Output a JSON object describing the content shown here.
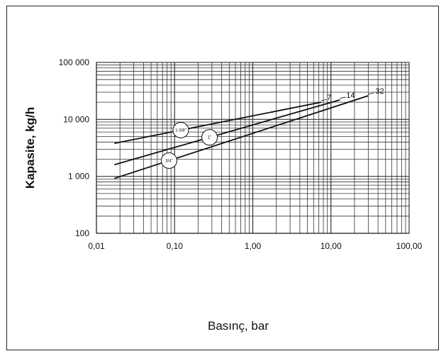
{
  "chart_data": {
    "type": "line",
    "title": "",
    "xlabel": "Basınç, bar",
    "ylabel": "Kapasite, kg/h",
    "xscale": "log",
    "yscale": "log",
    "xlim": [
      0.01,
      100
    ],
    "ylim": [
      100,
      100000
    ],
    "grid": true,
    "x_tick_labels": [
      "0,01",
      "0,10",
      "1,00",
      "10,00",
      "100,00"
    ],
    "y_tick_labels": [
      "100",
      "1 000",
      "10 000",
      "100 000"
    ],
    "series": [
      {
        "name": "7",
        "pipe": "1-3/8\"",
        "x": [
          0.017,
          7.5
        ],
        "y": [
          3800,
          20000
        ]
      },
      {
        "name": "14",
        "pipe": "1\"",
        "x": [
          0.017,
          13
        ],
        "y": [
          1600,
          22000
        ]
      },
      {
        "name": "32",
        "pipe": "3/4\"",
        "x": [
          0.017,
          30
        ],
        "y": [
          920,
          26000
        ]
      }
    ]
  },
  "colors": {
    "line": "#111111",
    "grid": "#333333",
    "background": "#ffffff"
  }
}
